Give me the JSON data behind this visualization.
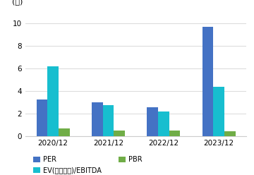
{
  "categories": [
    "2020/12",
    "2021/12",
    "2022/12",
    "2023/12"
  ],
  "series": {
    "PER": [
      3.3,
      3.0,
      2.6,
      9.7
    ],
    "EV(지분조정)/EBITDA": [
      6.2,
      2.8,
      2.2,
      4.4
    ],
    "PBR": [
      0.7,
      0.55,
      0.55,
      0.45
    ]
  },
  "colors": {
    "PER": "#4472C4",
    "EV(지분조정)/EBITDA": "#17BECF",
    "PBR": "#70AD47"
  },
  "ylabel": "(배)",
  "ylim": [
    0,
    11
  ],
  "yticks": [
    0,
    2,
    4,
    6,
    8,
    10
  ],
  "bar_width": 0.2,
  "background_color": "#ffffff",
  "grid_color": "#dddddd",
  "legend_fontsize": 7.0,
  "ylabel_fontsize": 8,
  "tick_fontsize": 7.5
}
